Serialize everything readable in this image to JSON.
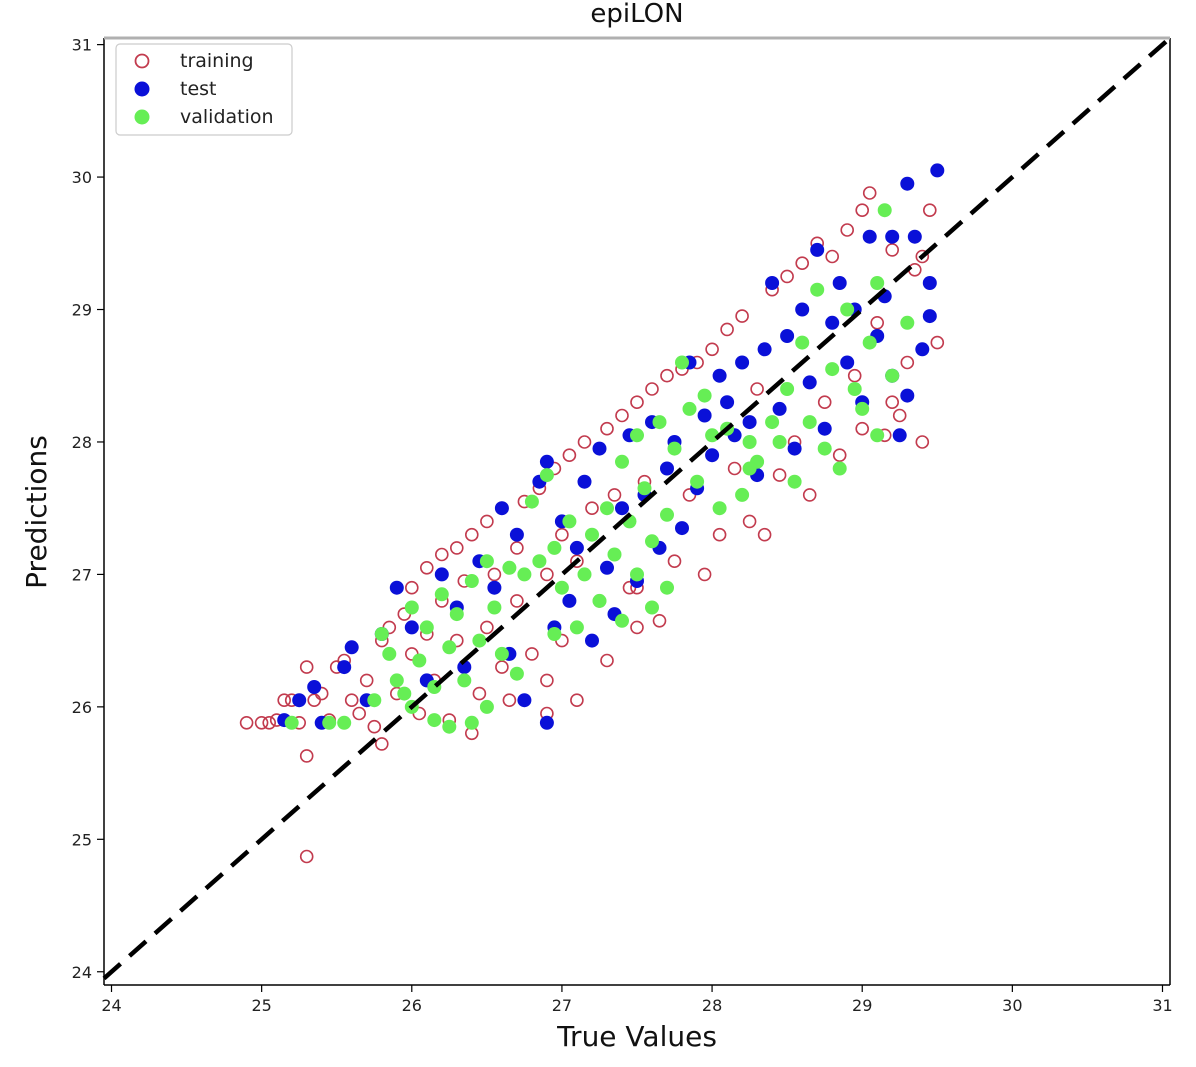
{
  "chart_data": {
    "type": "scatter",
    "title": "epiLON",
    "xlabel": "True Values",
    "ylabel": "Predictions",
    "xlim": [
      23.95,
      31.05
    ],
    "ylim": [
      23.9,
      31.05
    ],
    "xticks": [
      "24",
      "25",
      "26",
      "27",
      "28",
      "29",
      "30",
      "31"
    ],
    "yticks": [
      "24",
      "25",
      "26",
      "27",
      "28",
      "29",
      "30",
      "31"
    ],
    "grid": false,
    "legend_position": "top-left",
    "reference_line": {
      "style": "dashed",
      "color": "#000000",
      "from": [
        23.95,
        23.95
      ],
      "to": [
        31.05,
        31.05
      ]
    },
    "series": [
      {
        "name": "training",
        "marker": "open-circle",
        "color": "#c23b4e",
        "points": [
          [
            24.9,
            25.88
          ],
          [
            25.0,
            25.88
          ],
          [
            25.05,
            25.88
          ],
          [
            25.1,
            25.9
          ],
          [
            25.15,
            26.05
          ],
          [
            25.2,
            26.05
          ],
          [
            25.25,
            25.88
          ],
          [
            25.3,
            26.3
          ],
          [
            25.3,
            25.63
          ],
          [
            25.3,
            24.87
          ],
          [
            25.35,
            26.05
          ],
          [
            25.4,
            26.1
          ],
          [
            25.45,
            25.9
          ],
          [
            25.5,
            26.3
          ],
          [
            25.55,
            26.35
          ],
          [
            25.6,
            26.05
          ],
          [
            25.65,
            25.95
          ],
          [
            25.7,
            26.2
          ],
          [
            25.75,
            25.85
          ],
          [
            25.8,
            25.72
          ],
          [
            25.8,
            26.5
          ],
          [
            25.85,
            26.6
          ],
          [
            25.9,
            26.1
          ],
          [
            25.95,
            26.7
          ],
          [
            26.0,
            26.9
          ],
          [
            26.0,
            26.4
          ],
          [
            26.05,
            25.95
          ],
          [
            26.1,
            27.05
          ],
          [
            26.1,
            26.55
          ],
          [
            26.15,
            26.2
          ],
          [
            26.2,
            27.15
          ],
          [
            26.2,
            26.8
          ],
          [
            26.25,
            25.9
          ],
          [
            26.3,
            26.5
          ],
          [
            26.3,
            27.2
          ],
          [
            26.35,
            26.95
          ],
          [
            26.4,
            25.8
          ],
          [
            26.4,
            27.3
          ],
          [
            26.45,
            26.1
          ],
          [
            26.5,
            27.4
          ],
          [
            26.5,
            26.6
          ],
          [
            26.55,
            27.0
          ],
          [
            26.6,
            27.5
          ],
          [
            26.6,
            26.3
          ],
          [
            26.65,
            26.05
          ],
          [
            26.7,
            27.2
          ],
          [
            26.7,
            26.8
          ],
          [
            26.75,
            27.55
          ],
          [
            26.8,
            26.4
          ],
          [
            26.85,
            27.65
          ],
          [
            26.9,
            27.0
          ],
          [
            26.9,
            26.2
          ],
          [
            26.95,
            27.8
          ],
          [
            27.0,
            27.3
          ],
          [
            27.0,
            26.5
          ],
          [
            27.05,
            27.9
          ],
          [
            27.1,
            27.1
          ],
          [
            27.1,
            26.05
          ],
          [
            27.15,
            28.0
          ],
          [
            27.2,
            27.5
          ],
          [
            27.25,
            26.8
          ],
          [
            27.3,
            28.1
          ],
          [
            27.3,
            26.35
          ],
          [
            27.35,
            27.6
          ],
          [
            27.4,
            28.2
          ],
          [
            27.45,
            26.9
          ],
          [
            27.5,
            28.3
          ],
          [
            27.5,
            26.6
          ],
          [
            27.55,
            27.7
          ],
          [
            27.6,
            28.4
          ],
          [
            27.65,
            26.65
          ],
          [
            27.7,
            28.5
          ],
          [
            27.75,
            27.1
          ],
          [
            27.8,
            28.55
          ],
          [
            27.85,
            27.6
          ],
          [
            27.9,
            28.6
          ],
          [
            27.95,
            27.0
          ],
          [
            28.0,
            28.7
          ],
          [
            28.05,
            27.3
          ],
          [
            28.1,
            28.85
          ],
          [
            28.15,
            27.8
          ],
          [
            28.2,
            28.95
          ],
          [
            28.25,
            27.4
          ],
          [
            28.3,
            28.4
          ],
          [
            28.35,
            27.3
          ],
          [
            28.4,
            29.15
          ],
          [
            28.45,
            27.75
          ],
          [
            28.5,
            29.25
          ],
          [
            28.55,
            28.0
          ],
          [
            28.6,
            29.35
          ],
          [
            28.65,
            27.6
          ],
          [
            28.7,
            29.5
          ],
          [
            28.75,
            28.3
          ],
          [
            28.8,
            29.4
          ],
          [
            28.85,
            27.9
          ],
          [
            28.9,
            29.6
          ],
          [
            28.95,
            28.5
          ],
          [
            29.0,
            29.75
          ],
          [
            29.05,
            29.88
          ],
          [
            29.1,
            28.9
          ],
          [
            29.15,
            28.05
          ],
          [
            29.2,
            29.45
          ],
          [
            29.25,
            28.2
          ],
          [
            29.3,
            28.6
          ],
          [
            29.35,
            29.3
          ],
          [
            29.4,
            29.4
          ],
          [
            29.45,
            29.75
          ],
          [
            29.5,
            28.75
          ],
          [
            29.4,
            28.0
          ],
          [
            29.2,
            28.3
          ],
          [
            29.0,
            28.1
          ],
          [
            28.3,
            27.85
          ],
          [
            27.5,
            26.9
          ],
          [
            26.9,
            25.95
          ]
        ]
      },
      {
        "name": "test",
        "marker": "filled-circle",
        "color": "#0a10d8",
        "points": [
          [
            25.15,
            25.9
          ],
          [
            25.25,
            26.05
          ],
          [
            25.35,
            26.15
          ],
          [
            25.4,
            25.88
          ],
          [
            25.55,
            26.3
          ],
          [
            25.6,
            26.45
          ],
          [
            25.7,
            26.05
          ],
          [
            25.8,
            26.55
          ],
          [
            25.9,
            26.9
          ],
          [
            26.0,
            26.6
          ],
          [
            26.1,
            26.2
          ],
          [
            26.2,
            27.0
          ],
          [
            26.3,
            26.75
          ],
          [
            26.35,
            26.3
          ],
          [
            26.45,
            27.1
          ],
          [
            26.55,
            26.9
          ],
          [
            26.6,
            27.5
          ],
          [
            26.65,
            26.4
          ],
          [
            26.7,
            27.3
          ],
          [
            26.75,
            26.05
          ],
          [
            26.85,
            27.7
          ],
          [
            26.9,
            25.88
          ],
          [
            26.9,
            27.85
          ],
          [
            26.95,
            26.6
          ],
          [
            27.0,
            27.4
          ],
          [
            27.05,
            26.8
          ],
          [
            27.1,
            27.2
          ],
          [
            27.15,
            27.7
          ],
          [
            27.2,
            26.5
          ],
          [
            27.25,
            27.95
          ],
          [
            27.3,
            27.05
          ],
          [
            27.35,
            26.7
          ],
          [
            27.4,
            27.5
          ],
          [
            27.45,
            28.05
          ],
          [
            27.5,
            26.95
          ],
          [
            27.55,
            27.6
          ],
          [
            27.6,
            28.15
          ],
          [
            27.65,
            27.2
          ],
          [
            27.7,
            27.8
          ],
          [
            27.75,
            28.0
          ],
          [
            27.8,
            27.35
          ],
          [
            27.85,
            28.6
          ],
          [
            27.9,
            27.65
          ],
          [
            27.95,
            28.2
          ],
          [
            28.0,
            27.9
          ],
          [
            28.05,
            28.5
          ],
          [
            28.1,
            28.3
          ],
          [
            28.15,
            28.05
          ],
          [
            28.2,
            28.6
          ],
          [
            28.25,
            28.15
          ],
          [
            28.3,
            27.75
          ],
          [
            28.35,
            28.7
          ],
          [
            28.4,
            29.2
          ],
          [
            28.45,
            28.25
          ],
          [
            28.5,
            28.8
          ],
          [
            28.55,
            27.95
          ],
          [
            28.6,
            29.0
          ],
          [
            28.65,
            28.45
          ],
          [
            28.7,
            29.45
          ],
          [
            28.75,
            28.1
          ],
          [
            28.8,
            28.9
          ],
          [
            28.85,
            29.2
          ],
          [
            28.9,
            28.6
          ],
          [
            28.95,
            29.0
          ],
          [
            29.0,
            28.3
          ],
          [
            29.05,
            29.55
          ],
          [
            29.1,
            28.8
          ],
          [
            29.15,
            29.1
          ],
          [
            29.2,
            28.5
          ],
          [
            29.25,
            28.05
          ],
          [
            29.3,
            29.95
          ],
          [
            29.35,
            29.55
          ],
          [
            29.4,
            28.7
          ],
          [
            29.45,
            28.95
          ],
          [
            29.5,
            30.05
          ],
          [
            29.45,
            29.2
          ],
          [
            29.3,
            28.35
          ],
          [
            29.2,
            29.55
          ]
        ]
      },
      {
        "name": "validation",
        "marker": "filled-circle",
        "color": "#66ee55",
        "points": [
          [
            25.2,
            25.88
          ],
          [
            25.45,
            25.88
          ],
          [
            25.55,
            25.88
          ],
          [
            25.75,
            26.05
          ],
          [
            25.8,
            26.55
          ],
          [
            25.85,
            26.4
          ],
          [
            25.9,
            26.2
          ],
          [
            25.95,
            26.1
          ],
          [
            26.0,
            26.75
          ],
          [
            26.0,
            26.0
          ],
          [
            26.05,
            26.35
          ],
          [
            26.1,
            26.6
          ],
          [
            26.15,
            26.15
          ],
          [
            26.2,
            26.85
          ],
          [
            26.25,
            26.45
          ],
          [
            26.25,
            25.85
          ],
          [
            26.3,
            26.7
          ],
          [
            26.35,
            26.2
          ],
          [
            26.4,
            26.95
          ],
          [
            26.4,
            25.88
          ],
          [
            26.45,
            26.5
          ],
          [
            26.5,
            27.1
          ],
          [
            26.5,
            26.0
          ],
          [
            26.55,
            26.75
          ],
          [
            26.6,
            26.4
          ],
          [
            26.65,
            27.05
          ],
          [
            26.7,
            26.25
          ],
          [
            26.75,
            27.0
          ],
          [
            26.8,
            27.55
          ],
          [
            26.85,
            27.1
          ],
          [
            26.9,
            27.75
          ],
          [
            26.95,
            27.2
          ],
          [
            27.0,
            26.9
          ],
          [
            27.05,
            27.4
          ],
          [
            27.1,
            26.6
          ],
          [
            27.15,
            27.0
          ],
          [
            27.2,
            27.3
          ],
          [
            27.25,
            26.8
          ],
          [
            27.3,
            27.5
          ],
          [
            27.35,
            27.15
          ],
          [
            27.4,
            27.85
          ],
          [
            27.45,
            27.4
          ],
          [
            27.5,
            28.05
          ],
          [
            27.5,
            27.0
          ],
          [
            27.55,
            27.65
          ],
          [
            27.6,
            27.25
          ],
          [
            27.6,
            26.75
          ],
          [
            27.65,
            28.15
          ],
          [
            27.7,
            27.45
          ],
          [
            27.7,
            26.9
          ],
          [
            27.75,
            27.95
          ],
          [
            27.8,
            28.6
          ],
          [
            27.85,
            28.25
          ],
          [
            27.9,
            27.7
          ],
          [
            27.95,
            28.35
          ],
          [
            28.0,
            28.05
          ],
          [
            28.05,
            27.5
          ],
          [
            28.1,
            28.1
          ],
          [
            28.2,
            27.6
          ],
          [
            28.25,
            28.0
          ],
          [
            28.3,
            27.85
          ],
          [
            28.4,
            28.15
          ],
          [
            28.45,
            28.0
          ],
          [
            28.5,
            28.4
          ],
          [
            28.55,
            27.7
          ],
          [
            28.6,
            28.75
          ],
          [
            28.65,
            28.15
          ],
          [
            28.7,
            29.15
          ],
          [
            28.75,
            27.95
          ],
          [
            28.8,
            28.55
          ],
          [
            28.85,
            27.8
          ],
          [
            28.9,
            29.0
          ],
          [
            28.95,
            28.4
          ],
          [
            29.0,
            28.25
          ],
          [
            29.05,
            28.75
          ],
          [
            29.1,
            29.2
          ],
          [
            29.1,
            28.05
          ],
          [
            29.15,
            29.75
          ],
          [
            29.2,
            28.5
          ],
          [
            29.3,
            28.9
          ],
          [
            28.25,
            27.8
          ],
          [
            27.4,
            26.65
          ],
          [
            26.95,
            26.55
          ],
          [
            26.15,
            25.9
          ]
        ]
      }
    ]
  },
  "colors": {
    "axes_frame": "#000000",
    "top_spine": "#b0b0b0",
    "legend_border": "#cccccc"
  }
}
